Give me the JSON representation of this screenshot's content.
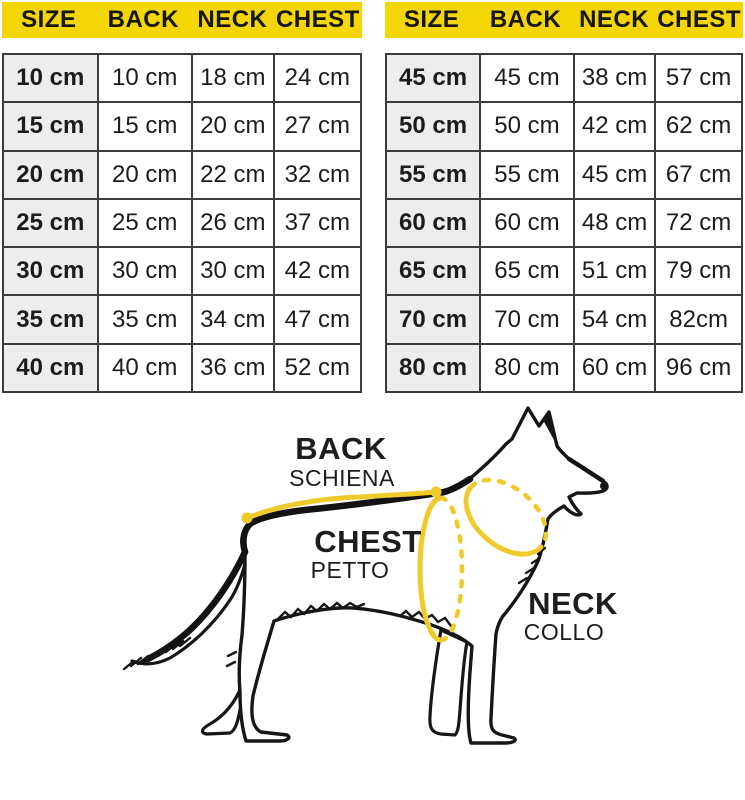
{
  "tables": {
    "columns": [
      "SIZE",
      "BACK",
      "NECK",
      "CHEST"
    ],
    "left": {
      "rows": [
        [
          "10 cm",
          "10 cm",
          "18 cm",
          "24 cm"
        ],
        [
          "15 cm",
          "15 cm",
          "20 cm",
          "27 cm"
        ],
        [
          "20 cm",
          "20 cm",
          "22 cm",
          "32 cm"
        ],
        [
          "25 cm",
          "25 cm",
          "26 cm",
          "37 cm"
        ],
        [
          "30 cm",
          "30 cm",
          "30 cm",
          "42 cm"
        ],
        [
          "35 cm",
          "35 cm",
          "34 cm",
          "47 cm"
        ],
        [
          "40 cm",
          "40 cm",
          "36 cm",
          "52 cm"
        ]
      ]
    },
    "right": {
      "rows": [
        [
          "45 cm",
          "45 cm",
          "38 cm",
          "57 cm"
        ],
        [
          "50 cm",
          "50 cm",
          "42 cm",
          "62 cm"
        ],
        [
          "55 cm",
          "55 cm",
          "45 cm",
          "67 cm"
        ],
        [
          "60 cm",
          "60 cm",
          "48 cm",
          "72 cm"
        ],
        [
          "65 cm",
          "65 cm",
          "51 cm",
          "79 cm"
        ],
        [
          "70 cm",
          "70 cm",
          "54 cm",
          "82cm"
        ],
        [
          "80 cm",
          "80 cm",
          "60 cm",
          "96 cm"
        ]
      ]
    }
  },
  "diagram": {
    "back": {
      "en": "BACK",
      "it": "SCHIENA"
    },
    "chest": {
      "en": "CHEST",
      "it": "PETTO"
    },
    "neck": {
      "en": "NECK",
      "it": "COLLO"
    }
  },
  "colors": {
    "header_yellow": "#f4d506",
    "measure_yellow": "#efca2b",
    "size_column_bg": "#ededed",
    "table_border": "#3c3c3c",
    "line_black": "#161616",
    "text": "#1c1c1c"
  }
}
